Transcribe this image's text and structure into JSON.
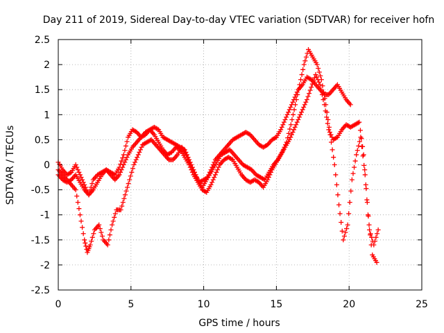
{
  "chart_data": {
    "type": "scatter",
    "title": "Day 211 of 2019, Sidereal Day-to-day VTEC variation (SDTVAR) for receiver hofn",
    "xlabel": "GPS time / hours",
    "ylabel": "SDTVAR / TECUs",
    "xlim": [
      0,
      25
    ],
    "ylim": [
      -2.5,
      2.5
    ],
    "x_ticks": [
      "0",
      "5",
      "10",
      "15",
      "20",
      "25"
    ],
    "y_ticks": [
      "-2.5",
      "-2",
      "-1.5",
      "-1",
      "-0.5",
      "0",
      "0.5",
      "1",
      "1.5",
      "2",
      "2.5"
    ],
    "grid": true,
    "marker": "+",
    "color": "#ff0000",
    "series": [
      {
        "x": [
          0.0,
          0.3,
          0.6,
          0.9,
          1.2,
          1.5,
          1.8,
          2.1,
          2.4,
          2.7,
          3.0,
          3.3,
          3.6,
          3.9,
          4.2,
          4.5,
          4.8,
          5.1,
          5.4,
          5.7,
          6.0,
          6.3,
          6.6,
          6.9,
          7.2,
          7.5,
          7.8,
          8.1,
          8.4,
          8.7,
          9.0,
          9.3,
          9.6,
          9.9,
          10.2,
          10.5,
          10.8,
          11.1,
          11.4,
          11.7,
          12.0,
          12.3,
          12.6,
          12.9,
          13.2,
          13.5,
          13.8,
          14.1,
          14.4,
          14.7,
          15.0,
          15.3,
          15.6,
          15.9,
          16.2,
          16.5,
          16.8,
          17.1,
          17.4,
          17.7,
          18.0,
          18.3,
          18.6,
          18.9,
          19.2,
          19.5,
          19.8,
          20.1
        ],
        "y": [
          -0.2,
          -0.3,
          -0.35,
          -0.3,
          -0.2,
          -0.35,
          -0.5,
          -0.6,
          -0.3,
          -0.2,
          -0.15,
          -0.1,
          -0.15,
          -0.2,
          -0.05,
          0.2,
          0.55,
          0.7,
          0.65,
          0.55,
          0.6,
          0.7,
          0.75,
          0.7,
          0.55,
          0.5,
          0.45,
          0.4,
          0.35,
          0.3,
          0.1,
          -0.1,
          -0.3,
          -0.45,
          -0.3,
          -0.1,
          0.1,
          0.2,
          0.3,
          0.4,
          0.5,
          0.55,
          0.6,
          0.65,
          0.6,
          0.5,
          0.4,
          0.35,
          0.4,
          0.5,
          0.55,
          0.7,
          0.9,
          1.1,
          1.3,
          1.5,
          1.6,
          1.75,
          1.7,
          1.6,
          1.5,
          1.4,
          1.4,
          1.5,
          1.6,
          1.45,
          1.3,
          1.2
        ]
      },
      {
        "x": [
          0.0,
          0.3,
          0.6,
          0.9,
          1.2,
          1.5,
          1.8,
          2.0,
          2.2,
          2.5,
          2.8,
          3.1,
          3.4,
          3.7,
          4.0,
          4.3,
          4.6,
          4.9,
          5.2,
          5.5,
          5.8,
          6.1,
          6.4,
          6.7,
          7.0,
          7.3,
          7.6,
          7.9,
          8.2,
          8.5,
          8.8,
          9.1,
          9.4,
          9.7,
          10.0,
          10.3,
          10.6,
          10.9,
          11.2,
          11.5,
          11.8,
          12.1,
          12.4,
          12.7,
          13.0,
          13.3,
          13.6,
          13.9,
          14.2,
          14.5,
          14.8,
          15.1,
          15.4,
          15.7,
          16.0,
          16.3,
          16.6,
          16.9,
          17.2,
          17.5,
          17.8,
          18.1,
          18.4,
          18.7,
          19.0,
          19.3,
          19.6,
          19.9,
          20.2,
          20.5,
          20.8,
          21.1,
          21.4,
          21.7,
          22.0
        ],
        "y": [
          -0.1,
          -0.2,
          -0.3,
          -0.4,
          -0.5,
          -1.0,
          -1.5,
          -1.75,
          -1.6,
          -1.3,
          -1.2,
          -1.5,
          -1.6,
          -1.2,
          -0.9,
          -0.9,
          -0.6,
          -0.3,
          0.0,
          0.2,
          0.4,
          0.45,
          0.5,
          0.4,
          0.3,
          0.2,
          0.1,
          0.1,
          0.2,
          0.35,
          0.2,
          0.0,
          -0.2,
          -0.35,
          -0.3,
          -0.25,
          -0.1,
          0.05,
          0.2,
          0.25,
          0.3,
          0.2,
          0.1,
          0.0,
          -0.05,
          -0.1,
          -0.2,
          -0.25,
          -0.3,
          -0.15,
          0.0,
          0.1,
          0.25,
          0.45,
          0.8,
          1.2,
          1.6,
          2.0,
          2.3,
          2.15,
          2.0,
          1.7,
          1.2,
          0.6,
          0.0,
          -0.8,
          -1.5,
          -1.2,
          -0.3,
          0.2,
          0.55,
          -0.2,
          -1.3,
          -1.6,
          -1.3
        ]
      },
      {
        "x": [
          0.0,
          0.3,
          0.6,
          0.9,
          1.2,
          1.5,
          1.8,
          2.1,
          2.4,
          2.7,
          3.0,
          3.3,
          3.6,
          3.9,
          4.2,
          4.5,
          4.8,
          5.1,
          5.4,
          5.7,
          6.0,
          6.3,
          6.6,
          6.9,
          7.2,
          7.5,
          7.8,
          8.1,
          8.4,
          8.7,
          9.0,
          9.3,
          9.6,
          9.9,
          10.2,
          10.5,
          10.8,
          11.1,
          11.4,
          11.7,
          12.0,
          12.3,
          12.6,
          12.9,
          13.2,
          13.5,
          13.8,
          14.1,
          14.4,
          14.7,
          15.0,
          15.3,
          15.6,
          15.9,
          16.2,
          16.5,
          16.8,
          17.1,
          17.4,
          17.7,
          18.0,
          18.3,
          18.6,
          18.9,
          19.2,
          19.5,
          19.8,
          20.1,
          20.4,
          20.7,
          21.0,
          21.3,
          21.6,
          21.9
        ],
        "y": [
          0.05,
          -0.1,
          -0.2,
          -0.15,
          0.0,
          -0.2,
          -0.4,
          -0.6,
          -0.5,
          -0.35,
          -0.2,
          -0.1,
          -0.2,
          -0.3,
          -0.2,
          0.0,
          0.2,
          0.35,
          0.45,
          0.55,
          0.65,
          0.7,
          0.6,
          0.45,
          0.3,
          0.2,
          0.25,
          0.35,
          0.3,
          0.15,
          0.0,
          -0.2,
          -0.35,
          -0.5,
          -0.55,
          -0.4,
          -0.2,
          0.0,
          0.1,
          0.15,
          0.1,
          -0.05,
          -0.2,
          -0.3,
          -0.35,
          -0.3,
          -0.35,
          -0.45,
          -0.3,
          -0.1,
          0.05,
          0.2,
          0.35,
          0.5,
          0.7,
          0.9,
          1.1,
          1.3,
          1.55,
          1.8,
          1.6,
          1.2,
          0.7,
          0.5,
          0.55,
          0.7,
          0.8,
          0.75,
          0.8,
          0.85,
          0.2,
          -1.0,
          -1.8,
          -1.95
        ]
      }
    ]
  }
}
